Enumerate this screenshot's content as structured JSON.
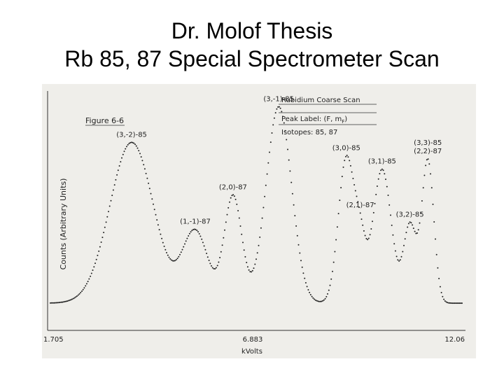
{
  "slide": {
    "title_line1": "Dr. Molof Thesis",
    "title_line2": "Rb 85, 87 Special Spectrometer Scan"
  },
  "chart_data": {
    "type": "scatter",
    "figure_label": "Figure 6-6",
    "legend": {
      "title": "Rubidium Coarse Scan",
      "peak_label_prefix": "Peak Label: (F, m",
      "peak_label_sub": "F",
      "peak_label_suffix": ")",
      "isotopes": "Isotopes: 85, 87"
    },
    "ylabel": "Counts (Arbitrary Units)",
    "xlabel": "kVolts",
    "x_ticks": [
      "1.705",
      "6.883",
      "12.06"
    ],
    "xlim": [
      1.705,
      12.06
    ],
    "ylim": [
      0,
      100
    ],
    "baseline": 10,
    "peaks": [
      {
        "x": 3.75,
        "height": 82,
        "width": 0.55,
        "label": "(3,-2)-85"
      },
      {
        "x": 5.35,
        "height": 42,
        "width": 0.32,
        "label": "(1,-1)-87"
      },
      {
        "x": 6.3,
        "height": 58,
        "width": 0.22,
        "label": "(2,0)-87"
      },
      {
        "x": 7.45,
        "height": 98,
        "width": 0.32,
        "label": "(3,-1)-85"
      },
      {
        "x": 9.15,
        "height": 75,
        "width": 0.2,
        "label": "(3,0)-85"
      },
      {
        "x": 9.5,
        "height": 33,
        "width": 0.14,
        "label": "(2,1)-87"
      },
      {
        "x": 10.05,
        "height": 70,
        "width": 0.23,
        "label": "(3,1)-85"
      },
      {
        "x": 10.75,
        "height": 45,
        "width": 0.16,
        "label": "(3,2)-85"
      },
      {
        "x": 11.2,
        "height": 74,
        "width": 0.15,
        "label": "(3,3)-85 (2,2)-87"
      }
    ],
    "grid": false,
    "colors": {
      "paper": "#efeeea",
      "ink": "#222222"
    }
  }
}
